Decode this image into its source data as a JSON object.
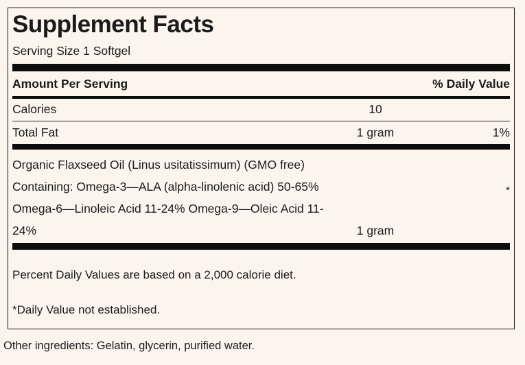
{
  "colors": {
    "background": "#fbf5ee",
    "text": "#1b1b1b",
    "rule_black": "#0d0d0d"
  },
  "panel": {
    "title": "Supplement Facts",
    "serving_size": "Serving Size 1 Softgel",
    "header": {
      "amount_label": "Amount Per Serving",
      "dv_label": "% Daily Value"
    },
    "rows": [
      {
        "label": "Calories",
        "amount": "10",
        "daily_value": ""
      },
      {
        "label": "Total Fat",
        "amount": "1 gram",
        "daily_value": "1%"
      }
    ],
    "fat_source": {
      "line1": "Organic Flaxseed Oil (Linus usitatissimum) (GMO free)",
      "line2": "Containing: Omega-3—ALA (alpha-linolenic acid) 50-65%",
      "line3": "Omega-6—Linoleic Acid 11-24% Omega-9—Oleic Acid 11-",
      "line4_label": "24%",
      "line4_amount": "1 gram",
      "daily_value_marker": "*"
    },
    "footnotes": {
      "percent_dv": "Percent Daily Values are based on a 2,000 calorie diet.",
      "asterisk": "*Daily Value not established."
    }
  },
  "other_ingredients": "Other ingredients: Gelatin, glycerin, purified water."
}
